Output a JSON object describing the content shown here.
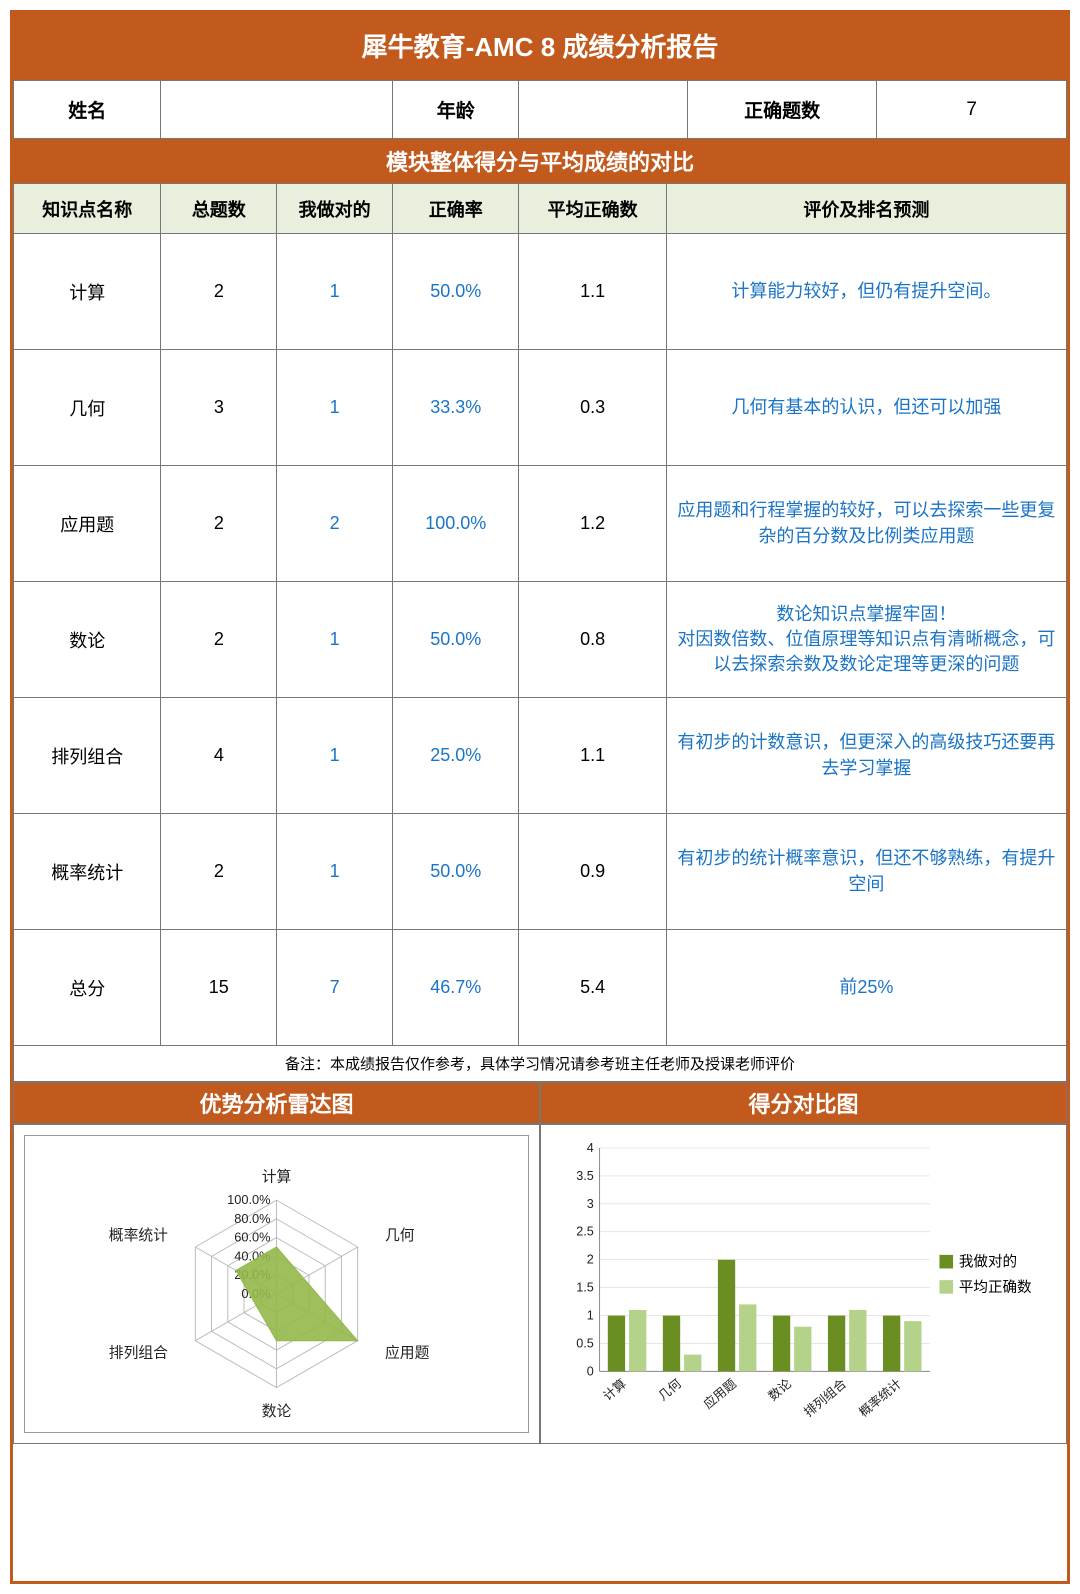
{
  "title": "犀牛教育-AMC 8 成绩分析报告",
  "info": {
    "name_label": "姓名",
    "name_value": "",
    "age_label": "年龄",
    "age_value": "",
    "correct_label": "正确题数",
    "correct_value": "7"
  },
  "section1_title": "模块整体得分与平均成绩的对比",
  "headers": {
    "c1": "知识点名称",
    "c2": "总题数",
    "c3": "我做对的",
    "c4": "正确率",
    "c5": "平均正确数",
    "c6": "评价及排名预测"
  },
  "rows": [
    {
      "name": "计算",
      "total": "2",
      "correct": "1",
      "rate": "50.0%",
      "avg": "1.1",
      "eval": "计算能力较好，但仍有提升空间。"
    },
    {
      "name": "几何",
      "total": "3",
      "correct": "1",
      "rate": "33.3%",
      "avg": "0.3",
      "eval": "几何有基本的认识，但还可以加强"
    },
    {
      "name": "应用题",
      "total": "2",
      "correct": "2",
      "rate": "100.0%",
      "avg": "1.2",
      "eval": "应用题和行程掌握的较好，可以去探索一些更复杂的百分数及比例类应用题"
    },
    {
      "name": "数论",
      "total": "2",
      "correct": "1",
      "rate": "50.0%",
      "avg": "0.8",
      "eval": "数论知识点掌握牢固！\n对因数倍数、位值原理等知识点有清晰概念，可以去探索余数及数论定理等更深的问题"
    },
    {
      "name": "排列组合",
      "total": "4",
      "correct": "1",
      "rate": "25.0%",
      "avg": "1.1",
      "eval": "有初步的计数意识，但更深入的高级技巧还要再去学习掌握"
    },
    {
      "name": "概率统计",
      "total": "2",
      "correct": "1",
      "rate": "50.0%",
      "avg": "0.9",
      "eval": "有初步的统计概率意识，但还不够熟练，有提升空间"
    },
    {
      "name": "总分",
      "total": "15",
      "correct": "7",
      "rate": "46.7%",
      "avg": "5.4",
      "eval": "前25%"
    }
  ],
  "note": "备注：本成绩报告仅作参考，具体学习情况请参考班主任老师及授课老师评价",
  "radar": {
    "title": "优势分析雷达图",
    "labels": [
      "计算",
      "几何",
      "应用题",
      "数论",
      "排列组合",
      "概率统计"
    ],
    "ticks": [
      "0.0%",
      "20.0%",
      "40.0%",
      "60.0%",
      "80.0%",
      "100.0%"
    ],
    "values": [
      0.5,
      0.333,
      1.0,
      0.5,
      0.25,
      0.5
    ],
    "ring_color": "#bbbbbb",
    "fill_color": "#93b84a",
    "fill_opacity": 0.9
  },
  "bar": {
    "title": "得分对比图",
    "categories": [
      "计算",
      "几何",
      "应用题",
      "数论",
      "排列组合",
      "概率统计"
    ],
    "series": [
      {
        "name": "我做对的",
        "color": "#6b8e23",
        "values": [
          1,
          1,
          2,
          1,
          1,
          1
        ]
      },
      {
        "name": "平均正确数",
        "color": "#b5d28a",
        "values": [
          1.1,
          0.3,
          1.2,
          0.8,
          1.1,
          0.9
        ]
      }
    ],
    "ymax": 4,
    "ytick_step": 0.5,
    "axis_color": "#888",
    "grid_color": "#ccc",
    "bar_width": 0.35
  }
}
